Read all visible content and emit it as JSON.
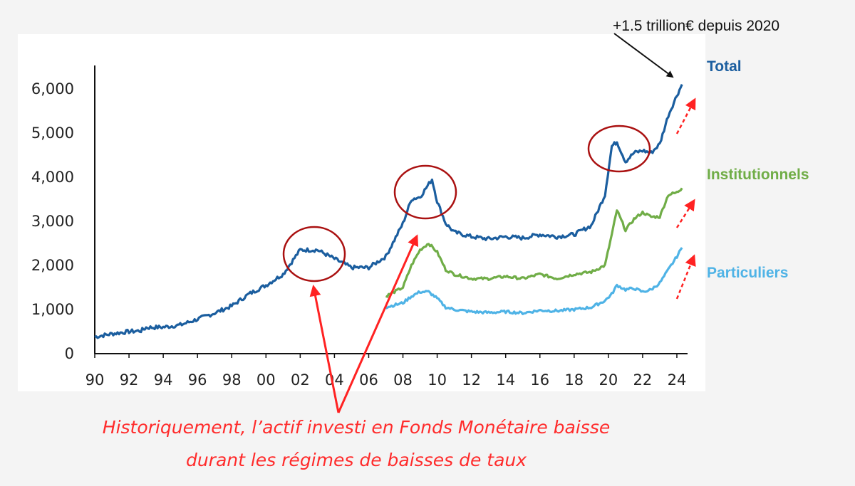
{
  "chart_data": {
    "type": "line",
    "x_tick_labels": [
      "90",
      "92",
      "94",
      "96",
      "98",
      "00",
      "02",
      "04",
      "06",
      "08",
      "10",
      "12",
      "14",
      "16",
      "18",
      "20",
      "22",
      "24"
    ],
    "y_tick_labels": [
      "0",
      "1,000",
      "2,000",
      "3,000",
      "4,000",
      "5,000",
      "6,000"
    ],
    "y_ticks": [
      0,
      1000,
      2000,
      3000,
      4000,
      5000,
      6000
    ],
    "xlim": [
      1990,
      2024.5
    ],
    "ylim": [
      0,
      6400
    ],
    "grid": false,
    "legend_placement": "right, inline labels",
    "series": [
      {
        "name": "Total",
        "color": "#1b5e9f",
        "x": [
          1990,
          1991,
          1992,
          1992.7,
          1993,
          1994,
          1995,
          1996,
          1997,
          1998,
          1999,
          2000,
          2001,
          2002,
          2002.5,
          2003,
          2004,
          2005,
          2006,
          2007,
          2008,
          2008.5,
          2009,
          2009.7,
          2010,
          2010.5,
          2011,
          2012,
          2013,
          2014,
          2015,
          2016,
          2017,
          2018,
          2019,
          2019.8,
          2020.2,
          2020.5,
          2021,
          2021.5,
          2022,
          2022.5,
          2023,
          2023.5,
          2024,
          2024.3
        ],
        "y": [
          380,
          450,
          500,
          520,
          590,
          600,
          650,
          780,
          920,
          1080,
          1350,
          1550,
          1800,
          2350,
          2350,
          2350,
          2150,
          1950,
          1950,
          2200,
          2950,
          3500,
          3550,
          3950,
          3450,
          2950,
          2750,
          2650,
          2600,
          2650,
          2620,
          2700,
          2650,
          2700,
          2900,
          3600,
          4700,
          4800,
          4350,
          4550,
          4600,
          4550,
          4750,
          5400,
          5850,
          6100
        ]
      },
      {
        "name": "Institutionnels",
        "color": "#70ad47",
        "x": [
          2007,
          2008,
          2008.5,
          2009,
          2009.5,
          2010,
          2010.5,
          2011,
          2012,
          2013,
          2014,
          2015,
          2016,
          2017,
          2018,
          2019,
          2019.8,
          2020.2,
          2020.5,
          2021,
          2021.5,
          2022,
          2022.5,
          2023,
          2023.5,
          2024,
          2024.3
        ],
        "y": [
          1300,
          1500,
          2000,
          2350,
          2500,
          2300,
          1900,
          1800,
          1700,
          1700,
          1750,
          1700,
          1800,
          1700,
          1800,
          1850,
          2000,
          2700,
          3250,
          2800,
          3050,
          3200,
          3100,
          3100,
          3600,
          3650,
          3750
        ]
      },
      {
        "name": "Particuliers",
        "color": "#4fb3e6",
        "x": [
          2007,
          2008,
          2008.5,
          2009,
          2009.5,
          2010,
          2010.5,
          2011,
          2012,
          2013,
          2014,
          2015,
          2016,
          2017,
          2018,
          2019,
          2019.8,
          2020.2,
          2020.5,
          2021,
          2021.5,
          2022,
          2022.5,
          2023,
          2023.5,
          2024,
          2024.3
        ],
        "y": [
          1050,
          1150,
          1300,
          1400,
          1400,
          1250,
          1050,
          1000,
          950,
          930,
          950,
          920,
          980,
          970,
          1000,
          1050,
          1200,
          1350,
          1550,
          1450,
          1480,
          1400,
          1450,
          1600,
          1900,
          2200,
          2400
        ]
      }
    ],
    "annotations": {
      "top_text": "+1.5 trillion€ depuis 2020",
      "caption_line1": "Historiquement, l’actif investi en Fonds Monétaire baisse",
      "caption_line2": "durant les régimes de baisses de taux",
      "circled_x": [
        2002.7,
        2009.2,
        2020.8
      ],
      "arrow_color": "#ff2222",
      "circle_color": "#aa1111"
    }
  }
}
